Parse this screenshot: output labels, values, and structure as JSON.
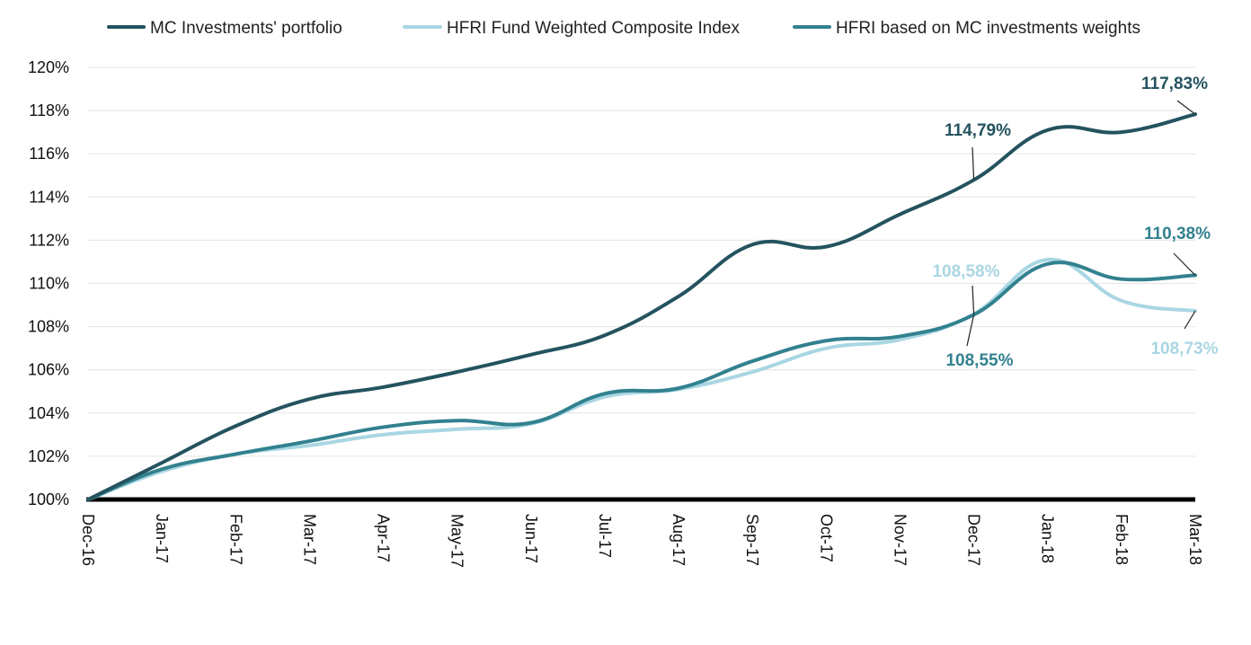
{
  "chart_data": {
    "type": "line",
    "title": "",
    "xlabel": "",
    "ylabel": "",
    "categories": [
      "Dec-16",
      "Jan-17",
      "Feb-17",
      "Mar-17",
      "Apr-17",
      "May-17",
      "Jun-17",
      "Jul-17",
      "Aug-17",
      "Sep-17",
      "Oct-17",
      "Nov-17",
      "Dec-17",
      "Jan-18",
      "Feb-18",
      "Mar-18"
    ],
    "ylim": [
      100,
      120
    ],
    "yticks": [
      100,
      102,
      104,
      106,
      108,
      110,
      112,
      114,
      116,
      118,
      120
    ],
    "ytick_labels": [
      "100%",
      "102%",
      "104%",
      "106%",
      "108%",
      "110%",
      "112%",
      "114%",
      "116%",
      "118%",
      "120%"
    ],
    "grid": true,
    "legend_position": "top",
    "series": [
      {
        "name": "MC Investments' portfolio",
        "color": "#24535f",
        "values": [
          100.0,
          101.7,
          103.4,
          104.65,
          105.2,
          105.9,
          106.7,
          107.6,
          109.4,
          111.8,
          111.7,
          113.2,
          114.79,
          117.1,
          117.0,
          117.83
        ]
      },
      {
        "name": "HFRI Fund Weighted Composite Index",
        "color": "#a9d6e3",
        "values": [
          100.0,
          101.3,
          102.1,
          102.5,
          103.0,
          103.25,
          103.5,
          104.75,
          105.1,
          105.9,
          107.0,
          107.4,
          108.58,
          111.1,
          109.2,
          108.73
        ]
      },
      {
        "name": "HFRI based on MC investments weights",
        "color": "#32818f",
        "values": [
          100.0,
          101.4,
          102.1,
          102.7,
          103.35,
          103.65,
          103.55,
          104.9,
          105.15,
          106.4,
          107.35,
          107.55,
          108.55,
          110.9,
          110.2,
          110.38
        ]
      }
    ],
    "annotations": [
      {
        "series": 0,
        "index": 12,
        "text": "114,79%"
      },
      {
        "series": 0,
        "index": 15,
        "text": "117,83%"
      },
      {
        "series": 1,
        "index": 12,
        "text": "108,58%"
      },
      {
        "series": 1,
        "index": 15,
        "text": "108,73%"
      },
      {
        "series": 2,
        "index": 12,
        "text": "108,55%"
      },
      {
        "series": 2,
        "index": 15,
        "text": "110,38%"
      }
    ]
  }
}
